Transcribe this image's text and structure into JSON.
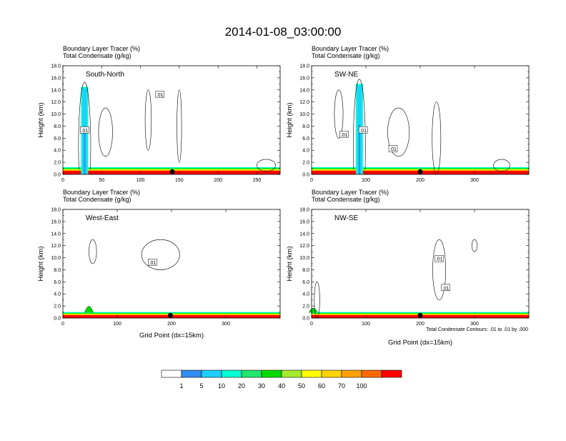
{
  "title": "2014-01-08_03:00:00",
  "colors": {
    "scale": [
      "#ffffff",
      "#2f8fef",
      "#1fcfff",
      "#00ffd2",
      "#1fe66e",
      "#00dc00",
      "#a6eb2e",
      "#ffff00",
      "#ffd200",
      "#ffa200",
      "#ff6a00",
      "#ff0000"
    ]
  },
  "shared": {
    "var_label_1": "Boundary Layer Tracer   (%)",
    "var_label_2": "Total Condensate   (g/kg)",
    "ylabel": "Height (km)",
    "xlabel": "Grid Point (dx=15km)",
    "contour_note": "Total Condensate Contours: .01 to .01 by .000",
    "contour_label": ".01"
  },
  "colorbar": {
    "ticks": [
      "1",
      "5",
      "10",
      "20",
      "30",
      "40",
      "50",
      "60",
      "70",
      "100"
    ]
  },
  "chart_data": [
    {
      "type": "heatmap",
      "name": "South-North",
      "ylim": [
        0,
        18
      ],
      "yticks": [
        "0.0",
        "2.0",
        "4.0",
        "6.0",
        "8.0",
        "10.0",
        "12.0",
        "14.0",
        "16.0",
        "18.0"
      ],
      "xlim": [
        0,
        280
      ],
      "xticks": [
        "0",
        "50",
        "100",
        "150",
        "200",
        "250"
      ],
      "xtick_values": [
        0,
        50,
        100,
        150,
        200,
        250
      ],
      "marker_x": 141,
      "plume_x": 28,
      "plume_top_km": 14.5,
      "surface_top_km": 1.2
    },
    {
      "type": "heatmap",
      "name": "SW-NE",
      "ylim": [
        0,
        18
      ],
      "yticks": [
        "0.0",
        "2.0",
        "4.0",
        "6.0",
        "8.0",
        "10.0",
        "12.0",
        "14.0",
        "16.0",
        "18.0"
      ],
      "xlim": [
        0,
        400
      ],
      "xticks": [
        "0",
        "100",
        "200",
        "300"
      ],
      "xtick_values": [
        0,
        100,
        200,
        300
      ],
      "marker_x": 200,
      "plume_x": 88,
      "plume_top_km": 15.0,
      "surface_top_km": 1.2
    },
    {
      "type": "heatmap",
      "name": "West-East",
      "ylim": [
        0,
        18
      ],
      "yticks": [
        "0.0",
        "2.0",
        "4.0",
        "6.0",
        "8.0",
        "10.0",
        "12.0",
        "14.0",
        "16.0",
        "18.0"
      ],
      "xlim": [
        0,
        400
      ],
      "xticks": [
        "0",
        "100",
        "200",
        "300"
      ],
      "xtick_values": [
        0,
        100,
        200,
        300
      ],
      "marker_x": 198,
      "plume_x": 45,
      "plume_top_km": 1.6,
      "surface_top_km": 1.0
    },
    {
      "type": "heatmap",
      "name": "NW-SE",
      "ylim": [
        0,
        18
      ],
      "yticks": [
        "0.0",
        "2.0",
        "4.0",
        "6.0",
        "8.0",
        "10.0",
        "12.0",
        "14.0",
        "16.0",
        "18.0"
      ],
      "xlim": [
        0,
        400
      ],
      "xticks": [
        "0",
        "100",
        "200",
        "300"
      ],
      "xtick_values": [
        0,
        100,
        200,
        300
      ],
      "marker_x": 200,
      "plume_x": 0,
      "plume_top_km": 1.0,
      "surface_top_km": 1.0
    }
  ]
}
